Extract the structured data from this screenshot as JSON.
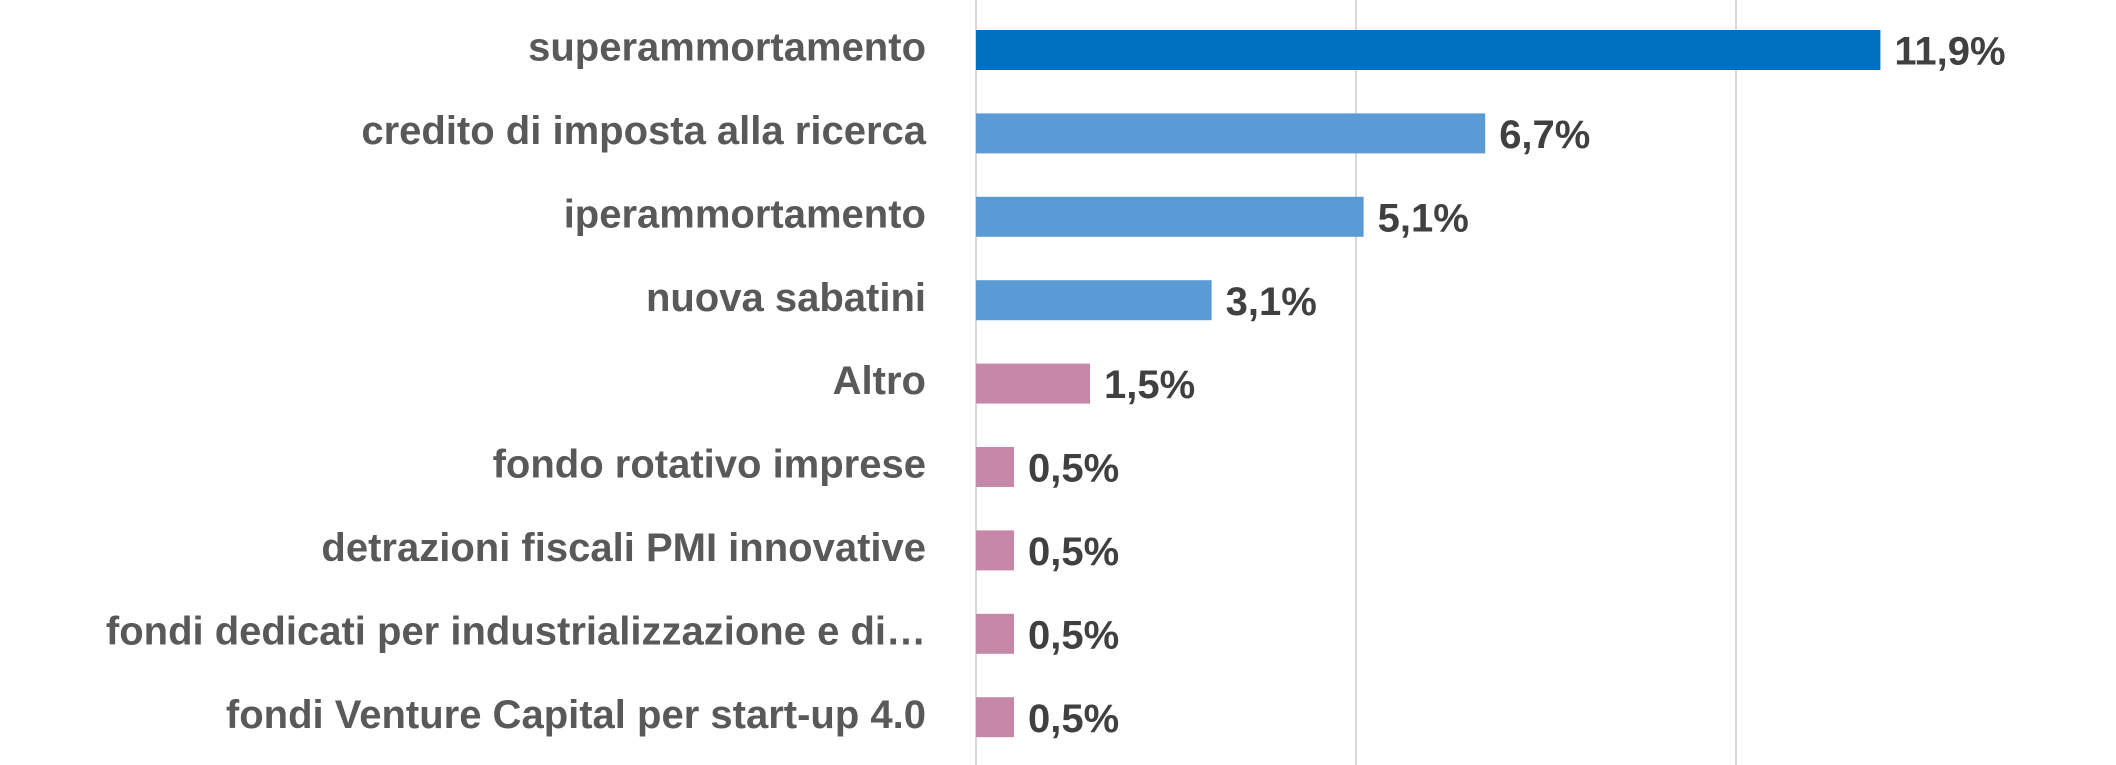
{
  "chart_data": {
    "type": "barh",
    "categories": [
      "superammortamento",
      "credito di imposta alla ricerca",
      "iperammortamento",
      "nuova sabatini",
      "Altro",
      "fondo rotativo imprese",
      "detrazioni fiscali PMI innovative",
      "fondi dedicati per industrializzazione e di…",
      "fondi Venture Capital per start-up 4.0"
    ],
    "values": [
      11.9,
      6.7,
      5.1,
      3.1,
      1.5,
      0.5,
      0.5,
      0.5,
      0.5
    ],
    "value_labels": [
      "11,9%",
      "6,7%",
      "5,1%",
      "3,1%",
      "1,5%",
      "0,5%",
      "0,5%",
      "0,5%",
      "0,5%"
    ],
    "colors": [
      "#0070c0",
      "#5b9bd5",
      "#5b9bd5",
      "#5b9bd5",
      "#c588a8",
      "#c588a8",
      "#c588a8",
      "#c588a8",
      "#c588a8"
    ],
    "xlim": [
      0,
      15
    ],
    "xticks": [
      0,
      5,
      10
    ],
    "grid": true
  }
}
